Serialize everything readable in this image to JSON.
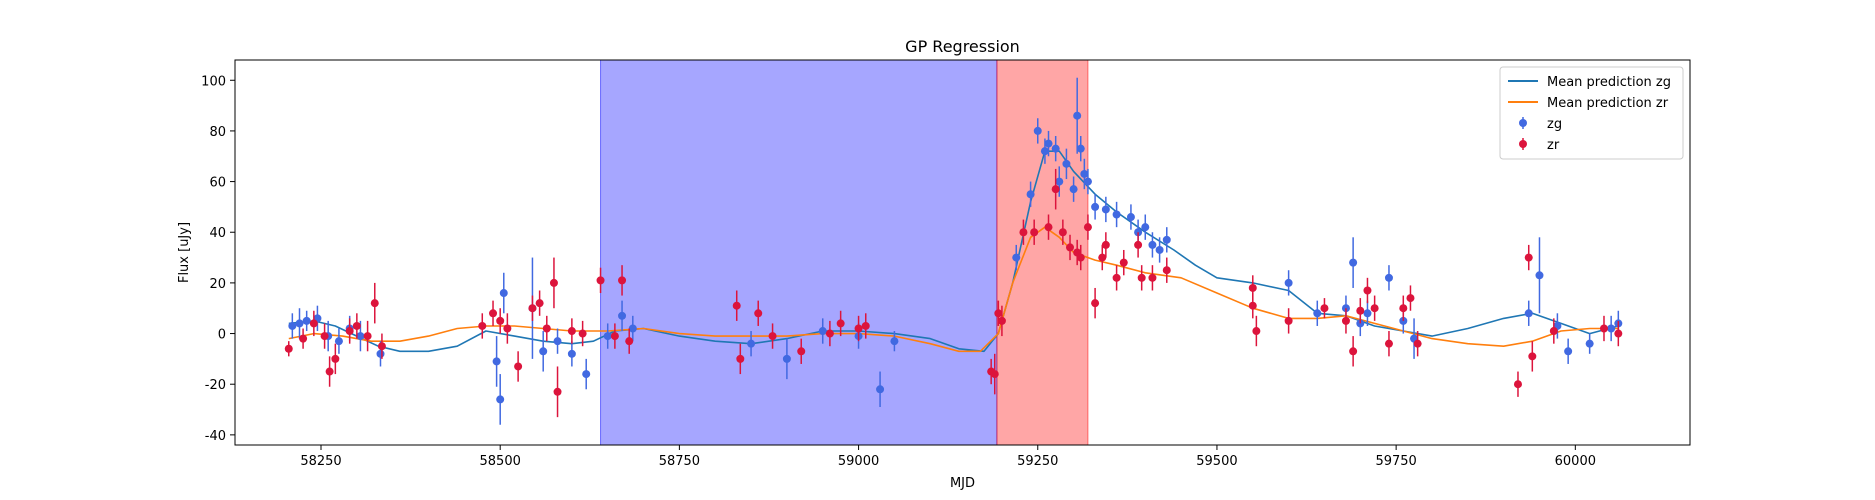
{
  "chart_data": {
    "type": "scatter",
    "title": "GP Regression",
    "xlabel": "MJD",
    "ylabel": "Flux [uJy]",
    "xlim": [
      58130,
      60160
    ],
    "ylim": [
      -44,
      108
    ],
    "xticks": [
      58250,
      58500,
      58750,
      59000,
      59250,
      59500,
      59750,
      60000
    ],
    "yticks": [
      -40,
      -20,
      0,
      20,
      40,
      60,
      80,
      100
    ],
    "legend_position": "top-right",
    "shaded_regions": [
      {
        "x0": 58640,
        "x1": 59193,
        "color": "#0000ff",
        "opacity": 0.35
      },
      {
        "x0": 59193,
        "x1": 59320,
        "color": "#ff0000",
        "opacity": 0.35
      }
    ],
    "series": [
      {
        "name": "Mean prediction zg",
        "kind": "line",
        "color": "#1f77b4",
        "points": [
          [
            58205,
            4
          ],
          [
            58240,
            5
          ],
          [
            58270,
            3
          ],
          [
            58300,
            -1
          ],
          [
            58330,
            -5
          ],
          [
            58360,
            -7
          ],
          [
            58400,
            -7
          ],
          [
            58440,
            -5
          ],
          [
            58480,
            1
          ],
          [
            58520,
            -1
          ],
          [
            58560,
            -3
          ],
          [
            58600,
            -4
          ],
          [
            58630,
            -3
          ],
          [
            58660,
            1
          ],
          [
            58700,
            2
          ],
          [
            58750,
            -1
          ],
          [
            58800,
            -3
          ],
          [
            58850,
            -4
          ],
          [
            58900,
            -2
          ],
          [
            58950,
            1
          ],
          [
            59000,
            1
          ],
          [
            59050,
            0
          ],
          [
            59100,
            -2
          ],
          [
            59140,
            -6
          ],
          [
            59175,
            -7
          ],
          [
            59195,
            0
          ],
          [
            59215,
            20
          ],
          [
            59240,
            52
          ],
          [
            59260,
            72
          ],
          [
            59280,
            72
          ],
          [
            59300,
            64
          ],
          [
            59330,
            55
          ],
          [
            59360,
            48
          ],
          [
            59400,
            40
          ],
          [
            59440,
            33
          ],
          [
            59470,
            27
          ],
          [
            59500,
            22
          ],
          [
            59550,
            20
          ],
          [
            59600,
            17
          ],
          [
            59640,
            8
          ],
          [
            59680,
            7
          ],
          [
            59720,
            3
          ],
          [
            59760,
            1
          ],
          [
            59800,
            -1
          ],
          [
            59850,
            2
          ],
          [
            59900,
            6
          ],
          [
            59940,
            8
          ],
          [
            59980,
            4
          ],
          [
            60020,
            0
          ],
          [
            60060,
            3
          ]
        ]
      },
      {
        "name": "Mean prediction zr",
        "kind": "line",
        "color": "#ff7f0e",
        "points": [
          [
            58205,
            -2
          ],
          [
            58240,
            0
          ],
          [
            58280,
            -1
          ],
          [
            58320,
            -3
          ],
          [
            58360,
            -3
          ],
          [
            58400,
            -1
          ],
          [
            58440,
            2
          ],
          [
            58480,
            3
          ],
          [
            58520,
            3
          ],
          [
            58560,
            2
          ],
          [
            58600,
            1
          ],
          [
            58650,
            1
          ],
          [
            58700,
            2
          ],
          [
            58750,
            0
          ],
          [
            58800,
            -1
          ],
          [
            58850,
            -1
          ],
          [
            58900,
            -1
          ],
          [
            58950,
            0
          ],
          [
            59000,
            0
          ],
          [
            59050,
            -1
          ],
          [
            59100,
            -4
          ],
          [
            59140,
            -7
          ],
          [
            59170,
            -7
          ],
          [
            59195,
            0
          ],
          [
            59215,
            20
          ],
          [
            59240,
            38
          ],
          [
            59260,
            42
          ],
          [
            59280,
            38
          ],
          [
            59300,
            32
          ],
          [
            59330,
            29
          ],
          [
            59360,
            27
          ],
          [
            59400,
            24
          ],
          [
            59450,
            22
          ],
          [
            59500,
            16
          ],
          [
            59550,
            10
          ],
          [
            59600,
            6
          ],
          [
            59640,
            6
          ],
          [
            59680,
            7
          ],
          [
            59720,
            4
          ],
          [
            59760,
            1
          ],
          [
            59800,
            -2
          ],
          [
            59850,
            -4
          ],
          [
            59900,
            -5
          ],
          [
            59940,
            -3
          ],
          [
            59980,
            1
          ],
          [
            60020,
            2
          ],
          [
            60060,
            2
          ]
        ]
      },
      {
        "name": "zg",
        "kind": "errorbar",
        "color": "#4169e1",
        "points": [
          [
            58210,
            3,
            5
          ],
          [
            58220,
            4,
            6
          ],
          [
            58230,
            5,
            4
          ],
          [
            58245,
            6,
            5
          ],
          [
            58260,
            -1,
            6
          ],
          [
            58275,
            -3,
            5
          ],
          [
            58290,
            2,
            5
          ],
          [
            58305,
            -1,
            6
          ],
          [
            58333,
            -8,
            5
          ],
          [
            58495,
            -11,
            10
          ],
          [
            58500,
            -26,
            10
          ],
          [
            58505,
            16,
            8
          ],
          [
            58545,
            10,
            20
          ],
          [
            58560,
            -7,
            8
          ],
          [
            58580,
            -3,
            5
          ],
          [
            58600,
            -8,
            5
          ],
          [
            58620,
            -16,
            6
          ],
          [
            58650,
            -1,
            5
          ],
          [
            58670,
            7,
            6
          ],
          [
            58685,
            2,
            5
          ],
          [
            58850,
            -4,
            5
          ],
          [
            58900,
            -10,
            8
          ],
          [
            58950,
            1,
            5
          ],
          [
            59000,
            -1,
            5
          ],
          [
            59030,
            -22,
            7
          ],
          [
            59050,
            -3,
            4
          ],
          [
            59220,
            30,
            5
          ],
          [
            59240,
            55,
            5
          ],
          [
            59250,
            80,
            5
          ],
          [
            59260,
            72,
            5
          ],
          [
            59265,
            75,
            5
          ],
          [
            59275,
            73,
            5
          ],
          [
            59280,
            60,
            6
          ],
          [
            59290,
            67,
            6
          ],
          [
            59300,
            57,
            5
          ],
          [
            59305,
            86,
            15
          ],
          [
            59310,
            73,
            5
          ],
          [
            59315,
            63,
            6
          ],
          [
            59320,
            60,
            5
          ],
          [
            59330,
            50,
            5
          ],
          [
            59345,
            49,
            5
          ],
          [
            59360,
            47,
            5
          ],
          [
            59380,
            46,
            5
          ],
          [
            59390,
            40,
            5
          ],
          [
            59400,
            42,
            5
          ],
          [
            59410,
            35,
            5
          ],
          [
            59420,
            33,
            5
          ],
          [
            59430,
            37,
            5
          ],
          [
            59600,
            20,
            5
          ],
          [
            59640,
            8,
            5
          ],
          [
            59680,
            10,
            5
          ],
          [
            59690,
            28,
            10
          ],
          [
            59700,
            4,
            5
          ],
          [
            59710,
            8,
            5
          ],
          [
            59740,
            22,
            5
          ],
          [
            59760,
            5,
            5
          ],
          [
            59775,
            -2,
            8
          ],
          [
            59935,
            8,
            5
          ],
          [
            59950,
            23,
            15
          ],
          [
            59975,
            3,
            5
          ],
          [
            59990,
            -7,
            5
          ],
          [
            60020,
            -4,
            4
          ],
          [
            60050,
            2,
            5
          ],
          [
            60060,
            4,
            5
          ]
        ]
      },
      {
        "name": "zr",
        "kind": "errorbar",
        "color": "#dc143c",
        "points": [
          [
            58205,
            -6,
            3
          ],
          [
            58225,
            -2,
            4
          ],
          [
            58240,
            4,
            5
          ],
          [
            58255,
            -1,
            5
          ],
          [
            58262,
            -15,
            6
          ],
          [
            58270,
            -10,
            6
          ],
          [
            58290,
            1,
            5
          ],
          [
            58300,
            3,
            5
          ],
          [
            58315,
            -1,
            6
          ],
          [
            58325,
            12,
            8
          ],
          [
            58335,
            -5,
            5
          ],
          [
            58475,
            3,
            5
          ],
          [
            58490,
            8,
            5
          ],
          [
            58500,
            5,
            5
          ],
          [
            58510,
            2,
            6
          ],
          [
            58525,
            -13,
            6
          ],
          [
            58545,
            10,
            5
          ],
          [
            58555,
            12,
            5
          ],
          [
            58565,
            2,
            5
          ],
          [
            58575,
            20,
            10
          ],
          [
            58580,
            -23,
            10
          ],
          [
            58600,
            1,
            5
          ],
          [
            58615,
            0,
            5
          ],
          [
            58640,
            21,
            5
          ],
          [
            58660,
            -1,
            5
          ],
          [
            58670,
            21,
            6
          ],
          [
            58680,
            -3,
            5
          ],
          [
            58830,
            11,
            6
          ],
          [
            58835,
            -10,
            6
          ],
          [
            58860,
            8,
            5
          ],
          [
            58880,
            -1,
            5
          ],
          [
            58920,
            -7,
            5
          ],
          [
            58960,
            0,
            5
          ],
          [
            58975,
            4,
            5
          ],
          [
            59000,
            2,
            5
          ],
          [
            59010,
            3,
            5
          ],
          [
            59185,
            -15,
            5
          ],
          [
            59190,
            -16,
            8
          ],
          [
            59195,
            8,
            5
          ],
          [
            59200,
            5,
            6
          ],
          [
            59230,
            40,
            5
          ],
          [
            59245,
            40,
            5
          ],
          [
            59265,
            42,
            5
          ],
          [
            59275,
            57,
            8
          ],
          [
            59285,
            40,
            5
          ],
          [
            59295,
            34,
            5
          ],
          [
            59305,
            32,
            5
          ],
          [
            59310,
            30,
            5
          ],
          [
            59320,
            42,
            5
          ],
          [
            59330,
            12,
            6
          ],
          [
            59340,
            30,
            5
          ],
          [
            59345,
            35,
            5
          ],
          [
            59360,
            22,
            5
          ],
          [
            59370,
            28,
            5
          ],
          [
            59390,
            35,
            5
          ],
          [
            59395,
            22,
            5
          ],
          [
            59410,
            22,
            5
          ],
          [
            59430,
            25,
            5
          ],
          [
            59550,
            18,
            5
          ],
          [
            59550,
            11,
            5
          ],
          [
            59555,
            1,
            6
          ],
          [
            59600,
            5,
            5
          ],
          [
            59650,
            10,
            4
          ],
          [
            59680,
            5,
            5
          ],
          [
            59690,
            -7,
            6
          ],
          [
            59700,
            9,
            5
          ],
          [
            59710,
            17,
            5
          ],
          [
            59720,
            10,
            5
          ],
          [
            59740,
            -4,
            5
          ],
          [
            59760,
            10,
            5
          ],
          [
            59770,
            14,
            5
          ],
          [
            59780,
            -4,
            5
          ],
          [
            59920,
            -20,
            5
          ],
          [
            59935,
            30,
            5
          ],
          [
            59940,
            -9,
            6
          ],
          [
            59970,
            1,
            5
          ],
          [
            60040,
            2,
            5
          ],
          [
            60060,
            0,
            5
          ]
        ]
      }
    ]
  }
}
